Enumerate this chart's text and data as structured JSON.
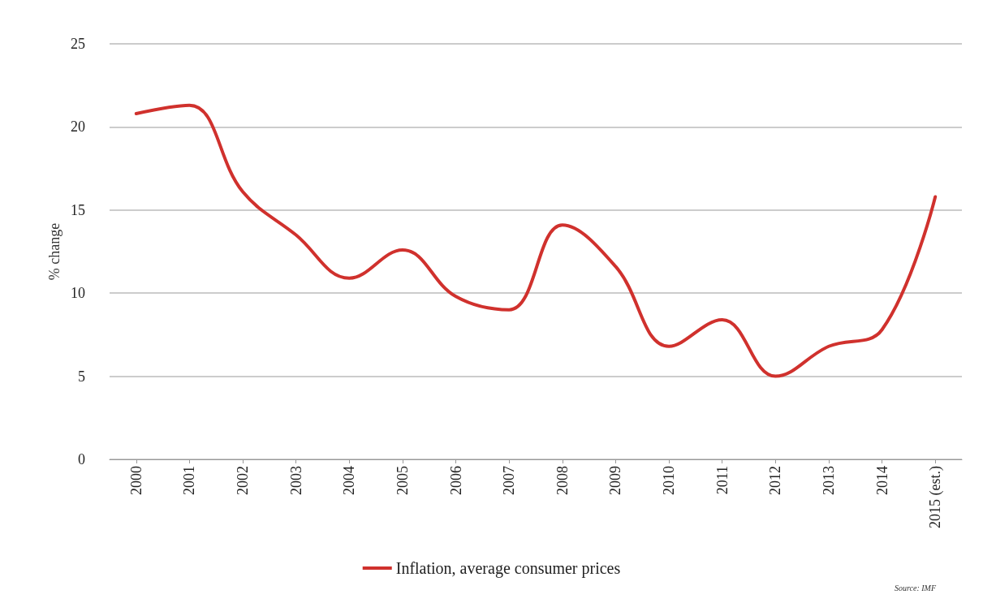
{
  "chart_data": {
    "type": "line",
    "ylabel": "% change",
    "categories": [
      "2000",
      "2001",
      "2002",
      "2003",
      "2004",
      "2005",
      "2006",
      "2007",
      "2008",
      "2009",
      "2010",
      "2011",
      "2012",
      "2013",
      "2014",
      "2015 (est.)"
    ],
    "series": [
      {
        "name": "Inflation, average consumer prices",
        "color": "#d0312d",
        "values": [
          20.8,
          21.3,
          16.1,
          13.5,
          10.9,
          12.6,
          9.8,
          9.0,
          14.1,
          11.6,
          6.8,
          8.4,
          5.0,
          6.8,
          7.8,
          15.8
        ]
      }
    ],
    "ylim": [
      0,
      25
    ],
    "yticks": [
      0,
      5,
      10,
      15,
      20,
      25
    ],
    "grid": "y",
    "legend": "bottom",
    "marker": "none",
    "line_style": "solid",
    "annotations": [
      "Source: IMF"
    ]
  }
}
